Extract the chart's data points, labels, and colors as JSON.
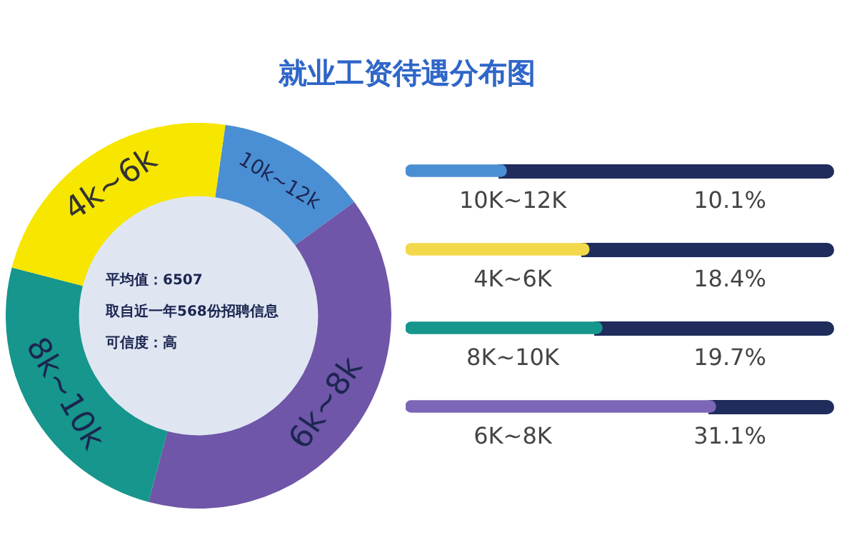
{
  "chart_data": [
    {
      "type": "donut",
      "title": "就业工资待遇分布图",
      "categories": [
        "10k~12k",
        "6k~8k",
        "8k~10k",
        "4k~6k"
      ],
      "values": [
        12.74,
        39.22,
        24.84,
        23.2
      ],
      "colors": [
        "#4a8fd4",
        "#6f56a8",
        "#16968c",
        "#f7e600"
      ],
      "annotations": [
        "平均值：6507",
        "取自近一年568份招聘信息",
        "可信度：高"
      ]
    },
    {
      "type": "bar",
      "orientation": "horizontal",
      "categories": [
        "10K~12K",
        "4K~6K",
        "8K~10K",
        "6K~8K"
      ],
      "values": [
        10.1,
        18.4,
        19.7,
        31.1
      ],
      "colors": [
        "#4a8fd4",
        "#f2d84a",
        "#16968c",
        "#7c66b8"
      ],
      "value_labels": [
        "10.1%",
        "18.4%",
        "19.7%",
        "31.1%"
      ],
      "xlim": [
        0,
        43
      ]
    }
  ]
}
